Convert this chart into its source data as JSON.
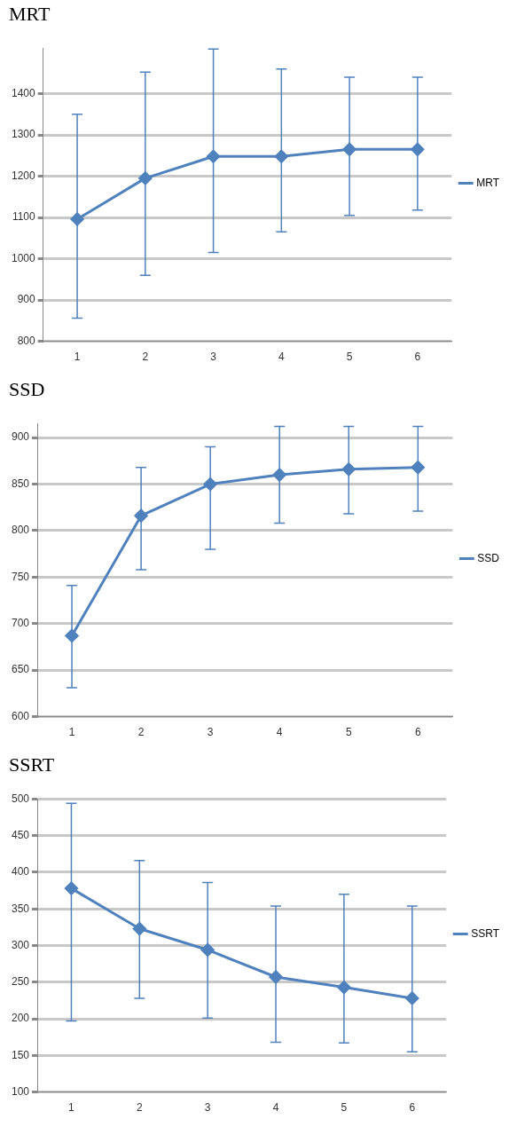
{
  "chart_data": [
    {
      "type": "line",
      "title": "MRT",
      "categories": [
        "1",
        "2",
        "3",
        "4",
        "5",
        "6"
      ],
      "series": [
        {
          "name": "MRT",
          "color": "#4f81bd",
          "values": [
            1096,
            1195,
            1248,
            1248,
            1265,
            1265
          ],
          "errors": [
            [
              856,
              1350
            ],
            [
              960,
              1452
            ],
            [
              1015,
              1508
            ],
            [
              1065,
              1460
            ],
            [
              1105,
              1440
            ],
            [
              1118,
              1440
            ]
          ]
        }
      ],
      "ylim": [
        800,
        1510
      ],
      "yticks": [
        800,
        900,
        1000,
        1100,
        1200,
        1300,
        1400
      ],
      "grid": "y",
      "legend": "right",
      "marker": "diamond",
      "line_style": "solid"
    },
    {
      "type": "line",
      "title": "SSD",
      "categories": [
        "1",
        "2",
        "3",
        "4",
        "5",
        "6"
      ],
      "series": [
        {
          "name": "SSD",
          "color": "#4f81bd",
          "values": [
            687,
            816,
            850,
            860,
            866,
            868
          ],
          "errors": [
            [
              631,
              741
            ],
            [
              758,
              868
            ],
            [
              780,
              890
            ],
            [
              808,
              912
            ],
            [
              818,
              912
            ],
            [
              821,
              912
            ]
          ]
        }
      ],
      "ylim": [
        600,
        915
      ],
      "yticks": [
        600,
        650,
        700,
        750,
        800,
        850,
        900
      ],
      "grid": "y",
      "legend": "right",
      "marker": "diamond",
      "line_style": "solid"
    },
    {
      "type": "line",
      "title": "SSRT",
      "categories": [
        "1",
        "2",
        "3",
        "4",
        "5",
        "6"
      ],
      "series": [
        {
          "name": "SSRT",
          "color": "#4f81bd",
          "values": [
            378,
            323,
            294,
            257,
            243,
            228
          ],
          "errors": [
            [
              197,
              494
            ],
            [
              228,
              416
            ],
            [
              201,
              386
            ],
            [
              168,
              354
            ],
            [
              167,
              370
            ],
            [
              155,
              354
            ]
          ]
        }
      ],
      "ylim": [
        100,
        500
      ],
      "yticks": [
        100,
        150,
        200,
        250,
        300,
        350,
        400,
        450,
        500
      ],
      "grid": "y",
      "legend": "right",
      "marker": "diamond",
      "line_style": "solid"
    }
  ]
}
